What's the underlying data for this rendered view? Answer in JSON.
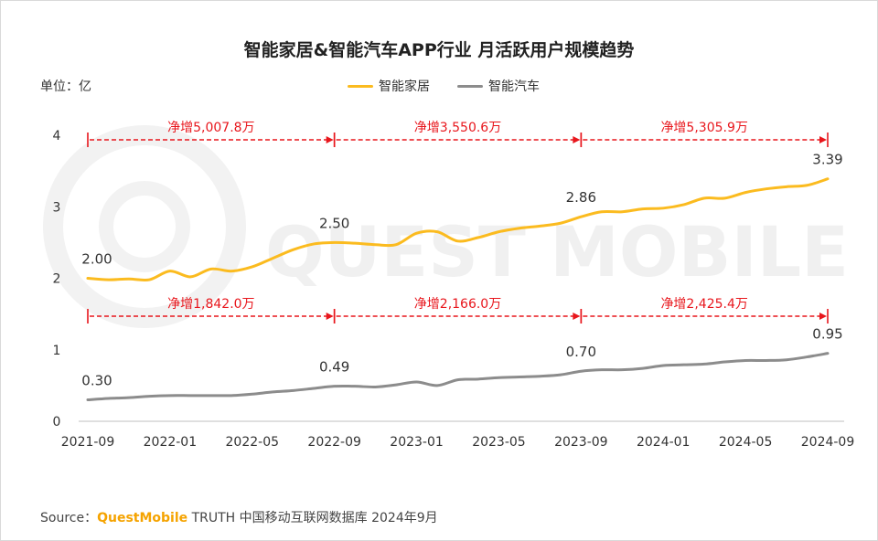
{
  "chart_data": {
    "type": "line",
    "title": "智能家居&智能汽车APP行业 月活跃用户规模趋势",
    "unit": "单位：亿",
    "ylim": [
      0,
      4
    ],
    "yticks": [
      "0",
      "1",
      "2",
      "3",
      "4"
    ],
    "x": [
      "2021-09",
      "2021-10",
      "2021-11",
      "2021-12",
      "2022-01",
      "2022-02",
      "2022-03",
      "2022-04",
      "2022-05",
      "2022-06",
      "2022-07",
      "2022-08",
      "2022-09",
      "2022-10",
      "2022-11",
      "2022-12",
      "2023-01",
      "2023-02",
      "2023-03",
      "2023-04",
      "2023-05",
      "2023-06",
      "2023-07",
      "2023-08",
      "2023-09",
      "2023-10",
      "2023-11",
      "2023-12",
      "2024-01",
      "2024-02",
      "2024-03",
      "2024-04",
      "2024-05",
      "2024-06",
      "2024-07",
      "2024-08",
      "2024-09"
    ],
    "xtick_labels": [
      "2021-09",
      "2022-01",
      "2022-05",
      "2022-09",
      "2023-01",
      "2023-05",
      "2023-09",
      "2024-01",
      "2024-05",
      "2024-09"
    ],
    "legend_position": "top-center",
    "grid": false,
    "series": [
      {
        "name": "智能家居",
        "color": "#fbbb1f",
        "values": [
          2.0,
          1.98,
          1.99,
          1.98,
          2.1,
          2.02,
          2.13,
          2.1,
          2.16,
          2.28,
          2.4,
          2.48,
          2.5,
          2.49,
          2.47,
          2.47,
          2.63,
          2.65,
          2.52,
          2.57,
          2.65,
          2.7,
          2.73,
          2.77,
          2.86,
          2.93,
          2.93,
          2.97,
          2.98,
          3.03,
          3.12,
          3.12,
          3.2,
          3.25,
          3.28,
          3.3,
          3.39
        ],
        "labels": [
          {
            "at": "2021-09",
            "text": "2.00"
          },
          {
            "at": "2022-09",
            "text": "2.50"
          },
          {
            "at": "2023-09",
            "text": "2.86"
          },
          {
            "at": "2024-09",
            "text": "3.39"
          }
        ]
      },
      {
        "name": "智能汽车",
        "color": "#8c8c8c",
        "values": [
          0.3,
          0.32,
          0.33,
          0.35,
          0.36,
          0.36,
          0.36,
          0.36,
          0.38,
          0.41,
          0.43,
          0.46,
          0.49,
          0.49,
          0.48,
          0.51,
          0.55,
          0.5,
          0.58,
          0.59,
          0.61,
          0.62,
          0.63,
          0.65,
          0.7,
          0.72,
          0.72,
          0.74,
          0.78,
          0.79,
          0.8,
          0.83,
          0.85,
          0.85,
          0.86,
          0.9,
          0.95
        ],
        "labels": [
          {
            "at": "2021-09",
            "text": "0.30"
          },
          {
            "at": "2022-09",
            "text": "0.49"
          },
          {
            "at": "2023-09",
            "text": "0.70"
          },
          {
            "at": "2024-09",
            "text": "0.95"
          }
        ]
      }
    ],
    "annotations": [
      {
        "from": "2021-09",
        "to": "2022-09",
        "level": "upper",
        "text": "净增5,007.8万"
      },
      {
        "from": "2022-09",
        "to": "2023-09",
        "level": "upper",
        "text": "净增3,550.6万"
      },
      {
        "from": "2023-09",
        "to": "2024-09",
        "level": "upper",
        "text": "净增5,305.9万"
      },
      {
        "from": "2021-09",
        "to": "2022-09",
        "level": "lower",
        "text": "净增1,842.0万"
      },
      {
        "from": "2022-09",
        "to": "2023-09",
        "level": "lower",
        "text": "净增2,166.0万"
      },
      {
        "from": "2023-09",
        "to": "2024-09",
        "level": "lower",
        "text": "净增2,425.4万"
      }
    ],
    "annotation_color": "#e8161c",
    "watermark": "QUEST MOBILE",
    "source": {
      "prefix": "Source：",
      "brand": "QuestMobile",
      "rest": " TRUTH 中国移动互联网数据库 2024年9月"
    }
  }
}
